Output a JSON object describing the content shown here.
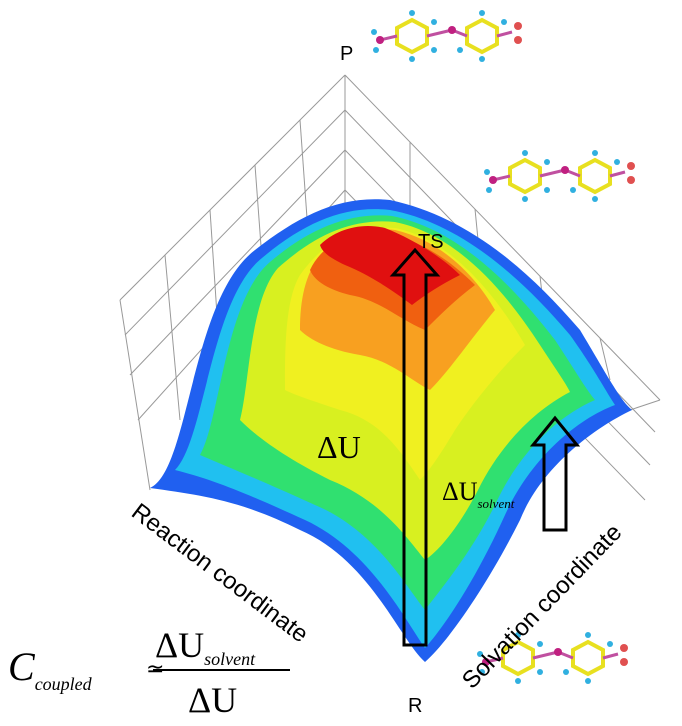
{
  "points": {
    "product": "P",
    "transition_state": "TS",
    "reactant": "R"
  },
  "axes": {
    "reaction": "Reaction coordinate",
    "solvation": "Solvation coordinate"
  },
  "arrows": {
    "delta_u": {
      "symbol": "ΔU"
    },
    "delta_u_solvent": {
      "symbol": "ΔU",
      "subscript": "solvent"
    }
  },
  "equation": {
    "lhs": "C",
    "lhs_subscript": "coupled",
    "relation": "≃",
    "numerator": "ΔU",
    "numerator_subscript": "solvent",
    "denominator": "ΔU"
  }
}
